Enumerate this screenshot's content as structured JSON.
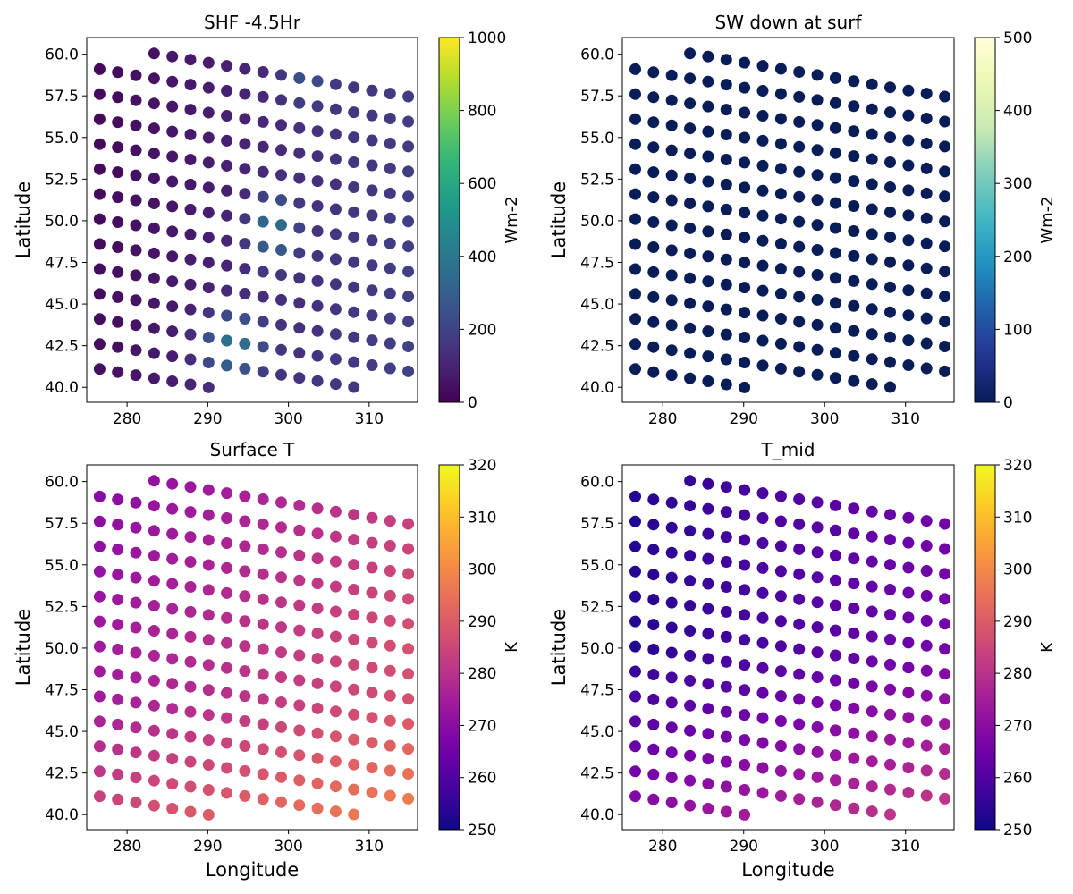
{
  "chart_data": [
    {
      "type": "scatter",
      "title": "SHF -4.5Hr",
      "xlabel": "",
      "ylabel": "Latitude",
      "xlim": [
        275,
        316
      ],
      "ylim": [
        39.1,
        61.0
      ],
      "xticks": [
        280,
        290,
        300,
        310
      ],
      "yticks": [
        40.0,
        42.5,
        45.0,
        47.5,
        50.0,
        52.5,
        55.0,
        57.5,
        60.0
      ],
      "grid": false,
      "colorbar": {
        "label": "Wm-2",
        "min": 0,
        "max": 1000,
        "ticks": [
          0,
          200,
          400,
          600,
          800,
          1000
        ],
        "colormap": "viridis"
      },
      "field": {
        "kind": "shf"
      }
    },
    {
      "type": "scatter",
      "title": "SW down at surf",
      "xlabel": "",
      "ylabel": "Latitude",
      "xlim": [
        275,
        316
      ],
      "ylim": [
        39.1,
        61.0
      ],
      "xticks": [
        280,
        290,
        300,
        310
      ],
      "yticks": [
        40.0,
        42.5,
        45.0,
        47.5,
        50.0,
        52.5,
        55.0,
        57.5,
        60.0
      ],
      "grid": false,
      "colorbar": {
        "label": "Wm-2",
        "min": 0,
        "max": 500,
        "ticks": [
          0,
          100,
          200,
          300,
          400,
          500
        ],
        "colormap": "YlGnBu_r"
      },
      "field": {
        "kind": "const",
        "value": 0
      }
    },
    {
      "type": "scatter",
      "title": "Surface T",
      "xlabel": "Longitude",
      "ylabel": "Latitude",
      "xlim": [
        275,
        316
      ],
      "ylim": [
        39.1,
        61.0
      ],
      "xticks": [
        280,
        290,
        300,
        310
      ],
      "yticks": [
        40.0,
        42.5,
        45.0,
        47.5,
        50.0,
        52.5,
        55.0,
        57.5,
        60.0
      ],
      "grid": false,
      "colorbar": {
        "label": "K",
        "min": 250,
        "max": 320,
        "ticks": [
          250,
          260,
          270,
          280,
          290,
          300,
          310,
          320
        ],
        "colormap": "plasma"
      },
      "field": {
        "kind": "surfT"
      }
    },
    {
      "type": "scatter",
      "title": "T_mid",
      "xlabel": "Longitude",
      "ylabel": "Latitude",
      "xlim": [
        275,
        316
      ],
      "ylim": [
        39.1,
        61.0
      ],
      "xticks": [
        280,
        290,
        300,
        310
      ],
      "yticks": [
        40.0,
        42.5,
        45.0,
        47.5,
        50.0,
        52.5,
        55.0,
        57.5,
        60.0
      ],
      "grid": false,
      "colorbar": {
        "label": "K",
        "min": 250,
        "max": 320,
        "ticks": [
          250,
          260,
          270,
          280,
          290,
          300,
          310,
          320
        ],
        "colormap": "plasma"
      },
      "field": {
        "kind": "tmid"
      }
    }
  ]
}
